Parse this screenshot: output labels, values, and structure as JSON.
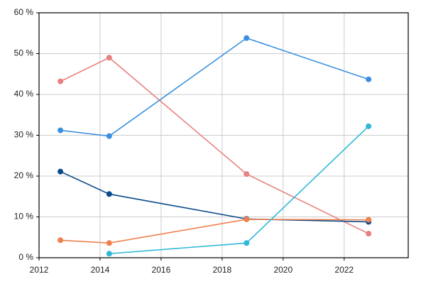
{
  "chart_data": {
    "type": "line",
    "x": [
      2012.7,
      2014.3,
      2018.8,
      2022.8
    ],
    "series": [
      {
        "color": "#e88080",
        "values": [
          43.2,
          49.0,
          20.5,
          5.9
        ]
      },
      {
        "color": "#3a8fe0",
        "values": [
          31.2,
          29.8,
          53.8,
          43.7
        ]
      },
      {
        "color": "#0a4a8a",
        "values": [
          21.1,
          15.6,
          9.5,
          8.8
        ]
      },
      {
        "color": "#f08050",
        "values": [
          4.3,
          3.6,
          9.4,
          9.3
        ]
      },
      {
        "color": "#30b8d8",
        "values": [
          null,
          1.0,
          3.6,
          32.2
        ]
      }
    ],
    "xlim": [
      2012,
      2024.1
    ],
    "xticks": [
      2012,
      2014,
      2016,
      2018,
      2020,
      2022
    ],
    "ylim": [
      0,
      60
    ],
    "yticks": [
      {
        "value": 0,
        "label": "0 %"
      },
      {
        "value": 10,
        "label": "10 %"
      },
      {
        "value": 20,
        "label": "20 %"
      },
      {
        "value": 30,
        "label": "30 %"
      },
      {
        "value": 40,
        "label": "40 %"
      },
      {
        "value": 50,
        "label": "50 %"
      },
      {
        "value": 60,
        "label": "60 %"
      }
    ],
    "grid": true
  }
}
